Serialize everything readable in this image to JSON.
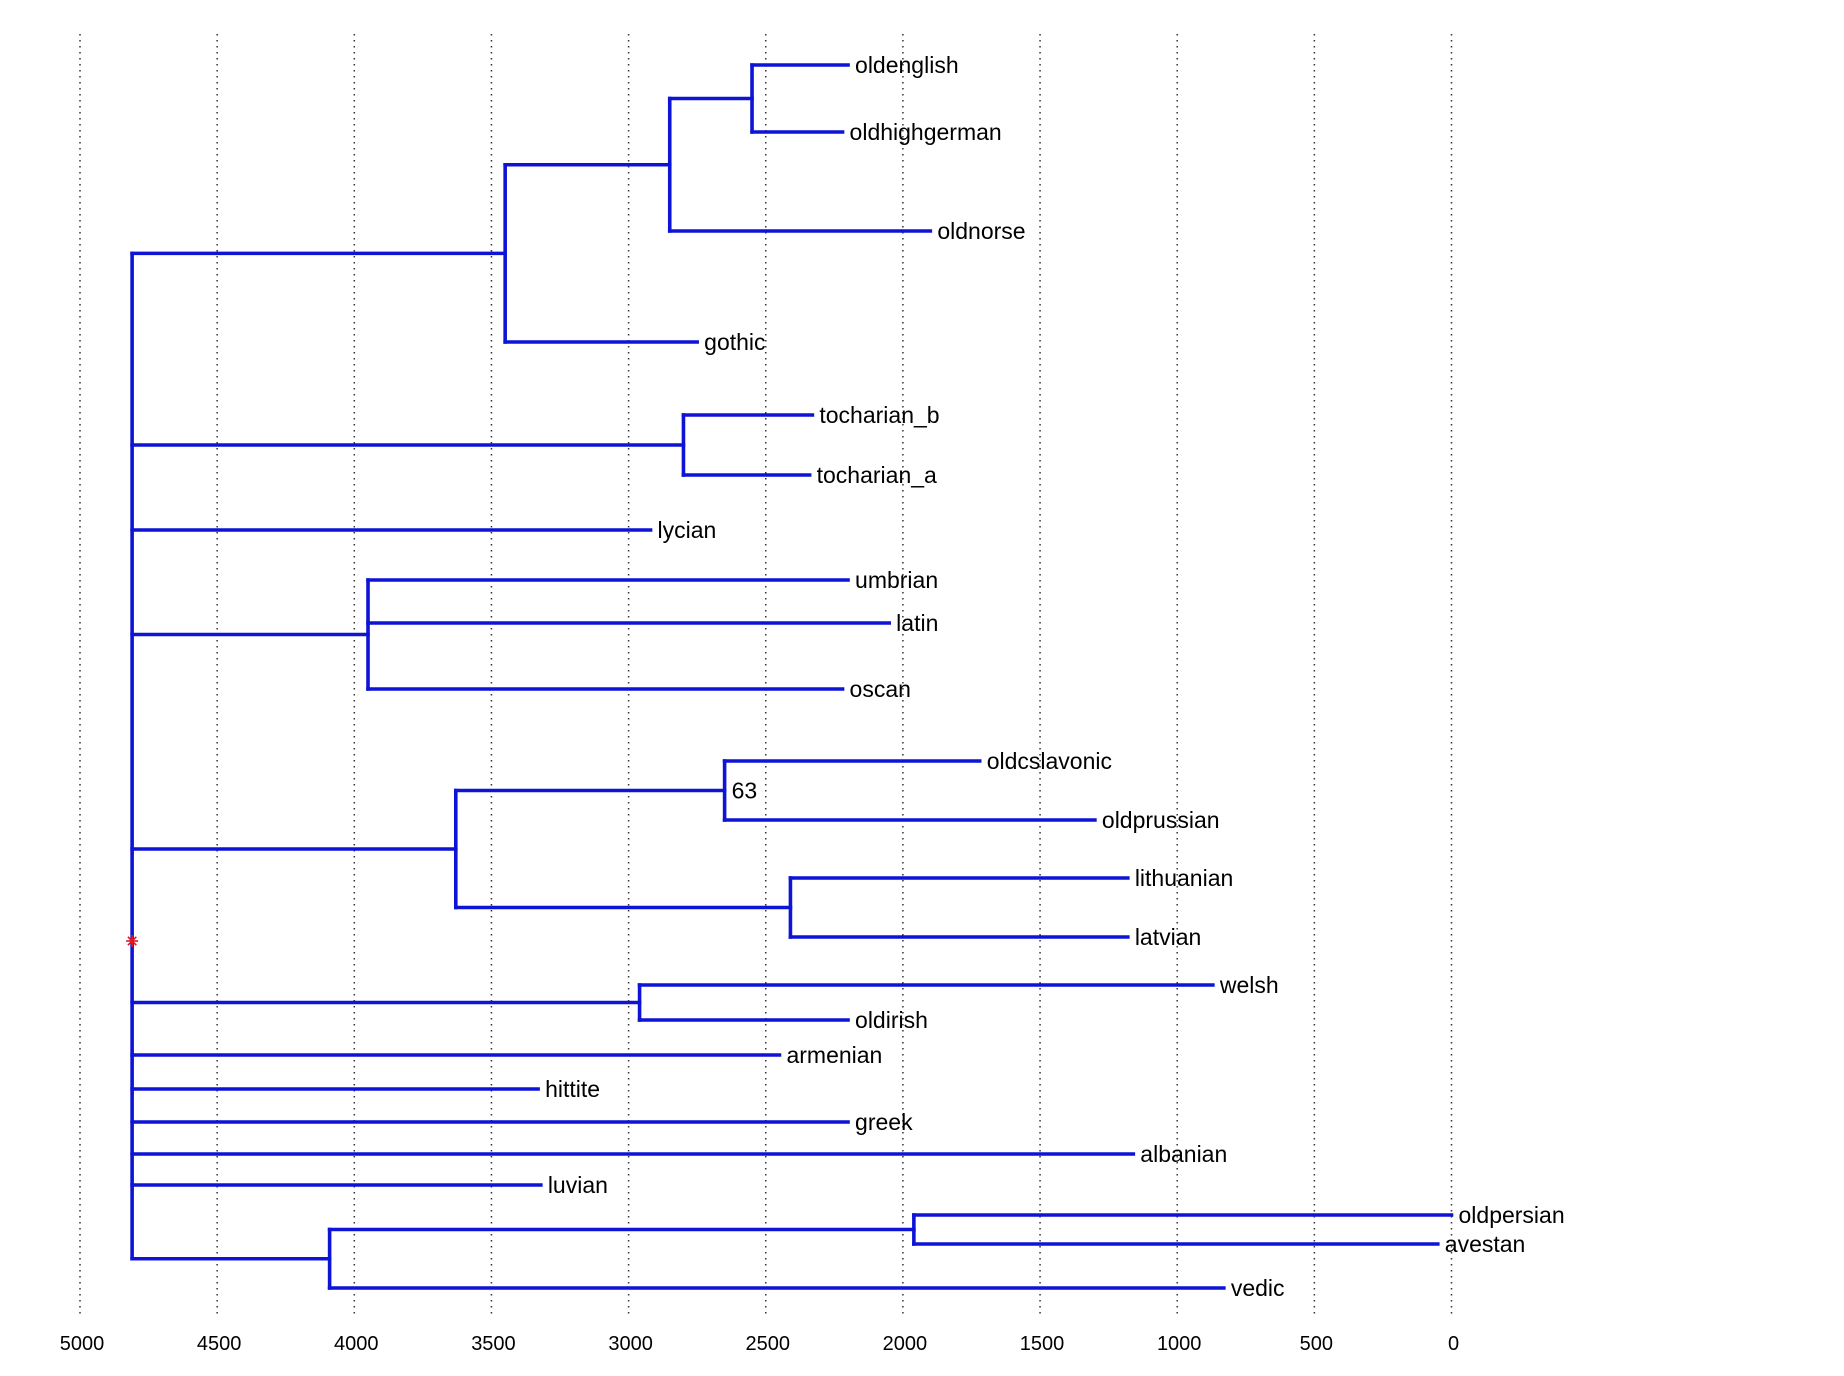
{
  "axis": {
    "ticks": [
      "5000",
      "4500",
      "4000",
      "3500",
      "3000",
      "2500",
      "2000",
      "1500",
      "1000",
      "500",
      "0"
    ],
    "range": [
      5000,
      0
    ],
    "grid": true
  },
  "accent_color": "#0e14d6",
  "root_marker_color": "#e8141e",
  "leaves": [
    {
      "name": "oldenglish",
      "tip": 2200
    },
    {
      "name": "oldhighgerman",
      "tip": 2220
    },
    {
      "name": "oldnorse",
      "tip": 1900
    },
    {
      "name": "gothic",
      "tip": 2750
    },
    {
      "name": "tocharian_b",
      "tip": 2330
    },
    {
      "name": "tocharian_a",
      "tip": 2340
    },
    {
      "name": "lycian",
      "tip": 2920
    },
    {
      "name": "umbrian",
      "tip": 2200
    },
    {
      "name": "latin",
      "tip": 2050
    },
    {
      "name": "oscan",
      "tip": 2220
    },
    {
      "name": "oldcslavonic",
      "tip": 1720
    },
    {
      "name": "oldprussian",
      "tip": 1300
    },
    {
      "name": "lithuanian",
      "tip": 1180
    },
    {
      "name": "latvian",
      "tip": 1180
    },
    {
      "name": "welsh",
      "tip": 870
    },
    {
      "name": "oldirish",
      "tip": 2200
    },
    {
      "name": "armenian",
      "tip": 2450
    },
    {
      "name": "hittite",
      "tip": 3330
    },
    {
      "name": "greek",
      "tip": 2200
    },
    {
      "name": "albanian",
      "tip": 1160
    },
    {
      "name": "luvian",
      "tip": 3320
    },
    {
      "name": "oldpersian",
      "tip": 0
    },
    {
      "name": "avestan",
      "tip": 50
    },
    {
      "name": "vedic",
      "tip": 830
    }
  ],
  "internal_nodes": [
    {
      "id": "root",
      "time": 4810,
      "children": [
        "germanic",
        "tocharian",
        "lycian",
        "italic",
        "baltoslavic",
        "celtic",
        "armenian",
        "hittite",
        "greek",
        "albanian",
        "luvian",
        "indoiranian"
      ]
    },
    {
      "id": "germanic",
      "time": 3450,
      "children": [
        "northwest",
        "gothic"
      ]
    },
    {
      "id": "northwest",
      "time": 2850,
      "children": [
        "westgerm",
        "oldnorse"
      ]
    },
    {
      "id": "westgerm",
      "time": 2550,
      "children": [
        "oldenglish",
        "oldhighgerman"
      ]
    },
    {
      "id": "tocharian",
      "time": 2800,
      "children": [
        "tocharian_b",
        "tocharian_a"
      ]
    },
    {
      "id": "italic",
      "time": 3950,
      "children": [
        "umbrian",
        "latin",
        "oscan"
      ]
    },
    {
      "id": "baltoslavic",
      "time": 3630,
      "children": [
        "slavprus",
        "eastbaltic"
      ]
    },
    {
      "id": "slavprus",
      "time": 2650,
      "label": "63",
      "children": [
        "oldcslavonic",
        "oldprussian"
      ]
    },
    {
      "id": "eastbaltic",
      "time": 2410,
      "children": [
        "lithuanian",
        "latvian"
      ]
    },
    {
      "id": "celtic",
      "time": 2960,
      "children": [
        "welsh",
        "oldirish"
      ]
    },
    {
      "id": "indoiranian",
      "time": 4090,
      "children": [
        "iranian",
        "vedic"
      ]
    },
    {
      "id": "iranian",
      "time": 1960,
      "children": [
        "oldpersian",
        "avestan"
      ]
    }
  ]
}
